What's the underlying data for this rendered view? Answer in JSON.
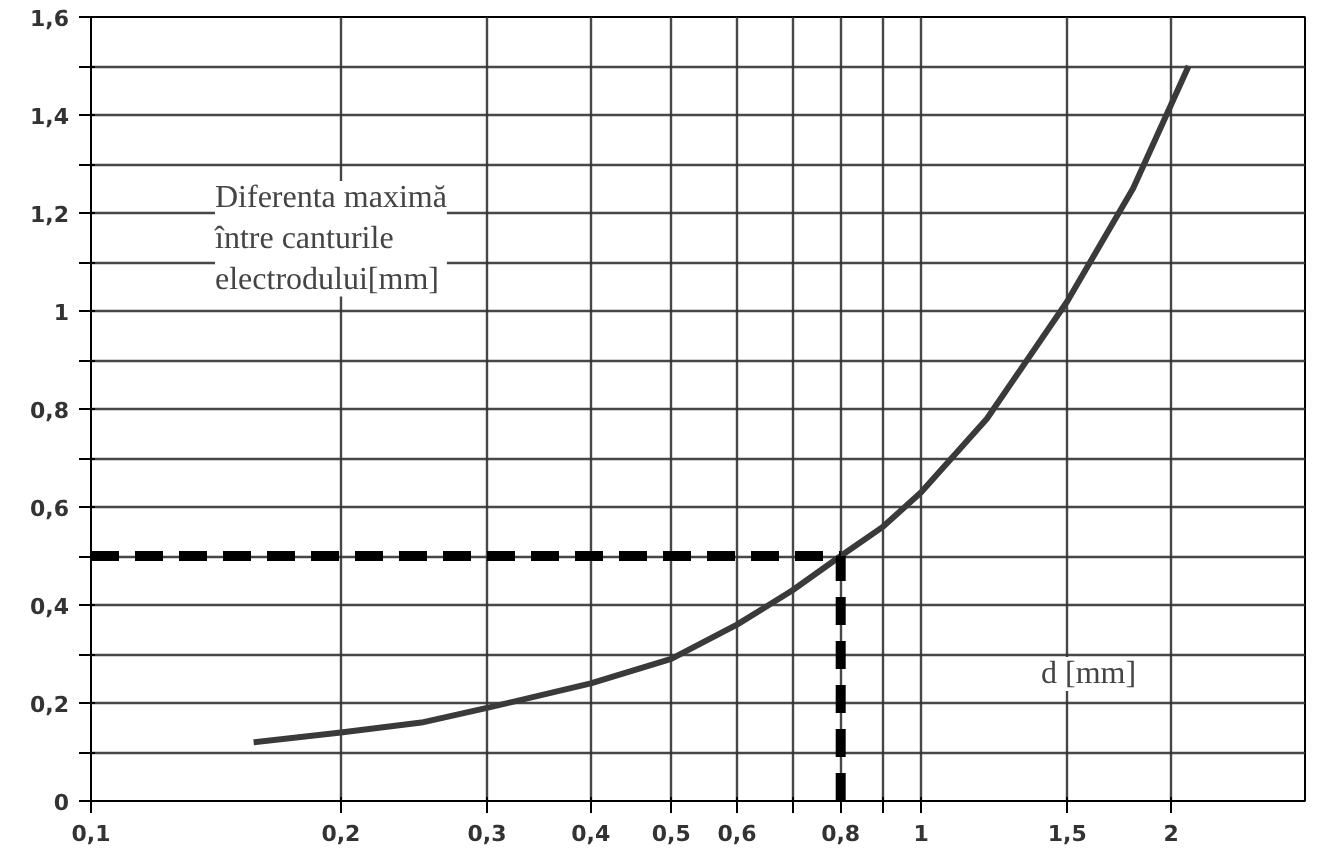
{
  "chart_data": {
    "type": "line",
    "log": "x",
    "xlabel": "d [mm]",
    "ylabel": "Diferenta maximă\nîntre canturile\nelectrodului[mm]",
    "x": [
      0.157,
      0.2,
      0.25,
      0.3,
      0.4,
      0.5,
      0.6,
      0.7,
      0.8,
      0.9,
      1.0,
      1.2,
      1.5,
      1.8,
      2.1
    ],
    "series": [
      {
        "color": "#3a3a3a",
        "values": [
          0.12,
          0.14,
          0.16,
          0.19,
          0.24,
          0.29,
          0.36,
          0.43,
          0.5,
          0.56,
          0.63,
          0.78,
          1.02,
          1.25,
          1.5
        ]
      }
    ],
    "xlim": [
      0.1,
      2.9
    ],
    "ylim": [
      0,
      1.6
    ],
    "xticks": [
      {
        "value": 0.1,
        "label": "0,1"
      },
      {
        "value": 0.2,
        "label": "0,2"
      },
      {
        "value": 0.3,
        "label": "0,3"
      },
      {
        "value": 0.4,
        "label": "0,4"
      },
      {
        "value": 0.5,
        "label": "0,5"
      },
      {
        "value": 0.6,
        "label": "0,6"
      },
      {
        "value": 0.7,
        "label": null
      },
      {
        "value": 0.8,
        "label": "0,8"
      },
      {
        "value": 0.9,
        "label": null
      },
      1,
      {
        "value": 1.5,
        "label": "1,5"
      },
      2
    ],
    "yticks": [
      0,
      {
        "value": 0.1,
        "label": null
      },
      {
        "value": 0.2,
        "label": "0,2"
      },
      {
        "value": 0.3,
        "label": null
      },
      {
        "value": 0.4,
        "label": "0,4"
      },
      {
        "value": 0.5,
        "label": null
      },
      {
        "value": 0.6,
        "label": "0,6"
      },
      {
        "value": 0.7,
        "label": null
      },
      {
        "value": 0.8,
        "label": "0,8"
      },
      {
        "value": 0.9,
        "label": null
      },
      1,
      {
        "value": 1.1,
        "label": null
      },
      {
        "value": 1.2,
        "label": "1,2"
      },
      {
        "value": 1.3,
        "label": null
      },
      {
        "value": 1.4,
        "label": "1,4"
      },
      {
        "value": 1.5,
        "label": null
      },
      {
        "value": 1.6,
        "label": "1,6"
      }
    ],
    "ref_lines": [
      {
        "axis": "y",
        "value": 0.5,
        "line_style": "dashed",
        "color": "#000000"
      },
      {
        "axis": "x",
        "value": 0.8,
        "line_style": "dashed",
        "color": "#000000"
      }
    ],
    "grid": true,
    "line_style": "solid",
    "marker": "none"
  }
}
